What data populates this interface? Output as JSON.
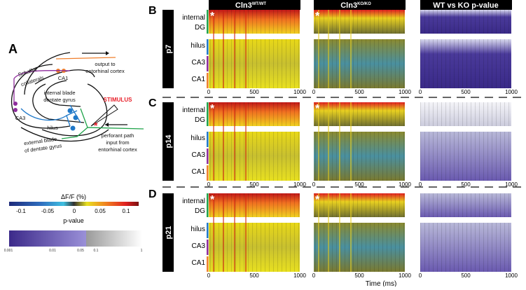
{
  "panel_a": {
    "letter": "A",
    "labels": {
      "output": [
        "output to",
        "entorhinal cortex"
      ],
      "schaffer": [
        "Schaffer",
        "collaterals"
      ],
      "ca1": "CA1",
      "ca3": "CA3",
      "internal_blade": [
        "internal blade",
        "dentate gyrus"
      ],
      "hilus": "hilus",
      "external_blade": [
        "external blade",
        "of dentate gyrus"
      ],
      "stimulus": "STIMULUS",
      "perforant": [
        "perforant path",
        "input from",
        "entorhinal cortex"
      ]
    },
    "colors": {
      "ca1": "#f07f2c",
      "ca3": "#8e2c9c",
      "dg": "#1f78c8",
      "perforant": "#1fa34a",
      "stimulus": "#e8202a"
    }
  },
  "colorbars": {
    "dff": {
      "title": "ΔF/F (%)",
      "ticks": [
        "-0.1",
        "-0.05",
        "0",
        "0.05",
        "0.1"
      ]
    },
    "pvalue": {
      "title": "p-value",
      "ticks": [
        "0.001",
        "0.01",
        "0.05",
        "0.1",
        "1"
      ]
    }
  },
  "columns": [
    "Cln3",
    "Cln3",
    "WT vs KO p-value"
  ],
  "column_superscripts": [
    "WT/WT",
    "KO/KO",
    ""
  ],
  "panels": [
    {
      "letter": "B",
      "age": "p7"
    },
    {
      "letter": "C",
      "age": "p14"
    },
    {
      "letter": "D",
      "age": "p21"
    }
  ],
  "row_labels": {
    "top": [
      "internal",
      "DG"
    ],
    "hilus": "hilus",
    "ca3": "CA3",
    "ca1": "CA1"
  },
  "stim_marker": "*",
  "x_ticks": [
    "0",
    "500",
    "1000"
  ],
  "x_label": "Time (ms)"
}
